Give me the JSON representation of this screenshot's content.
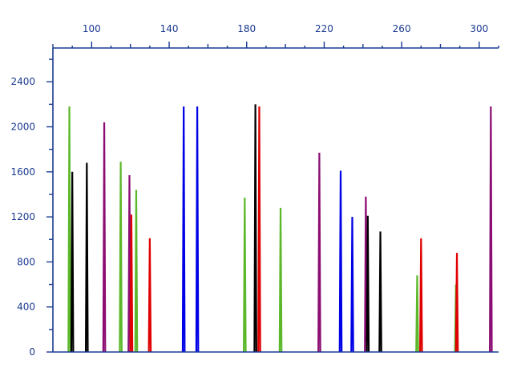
{
  "chart_data": {
    "type": "line",
    "title": "",
    "xlabel": "",
    "ylabel": "",
    "xlim": [
      80,
      310
    ],
    "ylim": [
      0,
      2700
    ],
    "x_ticks": [
      "100",
      "140",
      "180",
      "220",
      "260",
      "300"
    ],
    "y_ticks": [
      "0",
      "400",
      "800",
      "1200",
      "1600",
      "2000",
      "2400"
    ],
    "x_tick_values": [
      100,
      140,
      180,
      220,
      260,
      300
    ],
    "y_tick_values": [
      0,
      400,
      800,
      1200,
      1600,
      2000,
      2400
    ],
    "x_ticks_position": "top",
    "y_ticks_position": "left",
    "grid": false,
    "colors": {
      "axis": "#1a3a8f",
      "green": "#5cb82a",
      "black": "#000000",
      "purple": "#8b0d73",
      "red": "#e00000",
      "blue": "#0000e6"
    },
    "peak_half_width": 0.5,
    "peaks": [
      {
        "x": 88.5,
        "y": 2180,
        "color": "green"
      },
      {
        "x": 90.0,
        "y": 1600,
        "color": "black"
      },
      {
        "x": 97.5,
        "y": 1680,
        "color": "black"
      },
      {
        "x": 106.5,
        "y": 2040,
        "color": "purple"
      },
      {
        "x": 115.0,
        "y": 1690,
        "color": "green"
      },
      {
        "x": 119.5,
        "y": 1570,
        "color": "purple"
      },
      {
        "x": 120.5,
        "y": 1220,
        "color": "red"
      },
      {
        "x": 123.0,
        "y": 1440,
        "color": "green"
      },
      {
        "x": 130.0,
        "y": 1010,
        "color": "red"
      },
      {
        "x": 147.5,
        "y": 2180,
        "color": "blue"
      },
      {
        "x": 154.5,
        "y": 2180,
        "color": "blue"
      },
      {
        "x": 179.0,
        "y": 1370,
        "color": "green"
      },
      {
        "x": 184.5,
        "y": 2200,
        "color": "black"
      },
      {
        "x": 186.5,
        "y": 2180,
        "color": "red"
      },
      {
        "x": 197.5,
        "y": 1280,
        "color": "green"
      },
      {
        "x": 217.5,
        "y": 1770,
        "color": "purple"
      },
      {
        "x": 228.5,
        "y": 1610,
        "color": "blue"
      },
      {
        "x": 234.5,
        "y": 1200,
        "color": "blue"
      },
      {
        "x": 241.5,
        "y": 1380,
        "color": "purple"
      },
      {
        "x": 242.5,
        "y": 1210,
        "color": "black"
      },
      {
        "x": 249.0,
        "y": 1070,
        "color": "black"
      },
      {
        "x": 268.0,
        "y": 680,
        "color": "green"
      },
      {
        "x": 270.0,
        "y": 1010,
        "color": "red"
      },
      {
        "x": 288.0,
        "y": 600,
        "color": "green"
      },
      {
        "x": 288.5,
        "y": 880,
        "color": "red"
      },
      {
        "x": 306.0,
        "y": 2180,
        "color": "purple"
      }
    ]
  }
}
